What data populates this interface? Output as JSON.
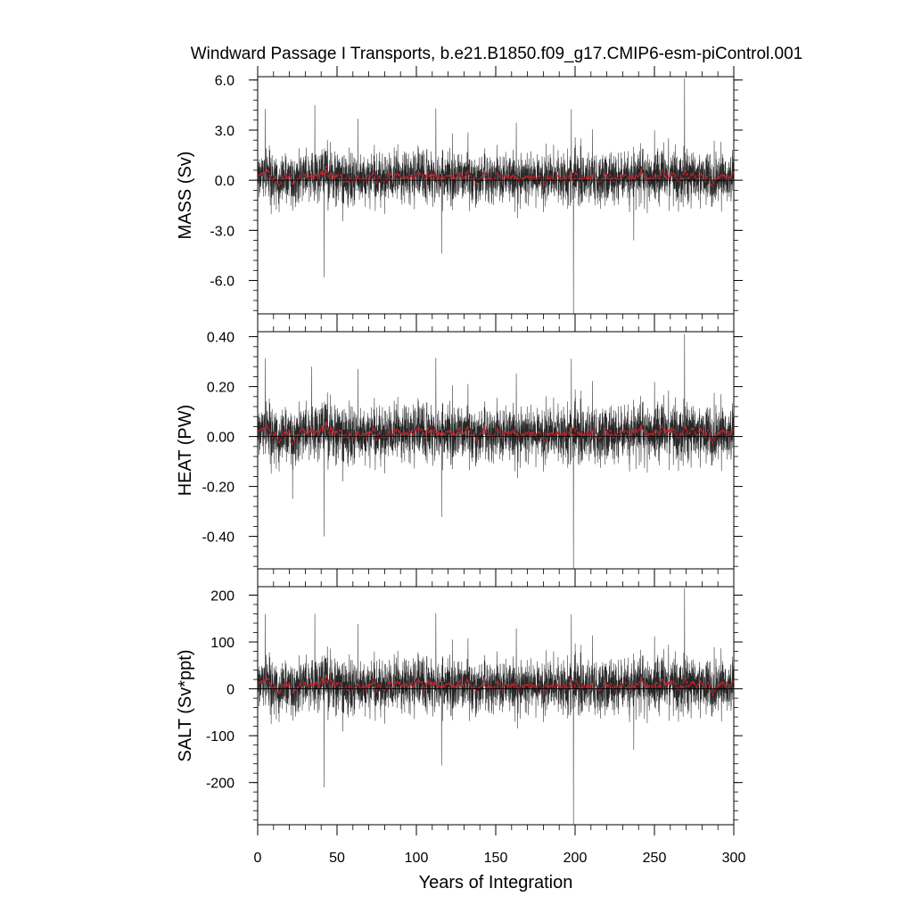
{
  "figure": {
    "title": "Windward Passage I Transports, b.e21.B1850.f09_g17.CMIP6-esm-piControl.001",
    "xlabel": "Years of Integration",
    "x_ticks": [
      0,
      50,
      100,
      150,
      200,
      250,
      300
    ],
    "x_tick_labels": [
      "0",
      "50",
      "100",
      "150",
      "200",
      "250",
      "300"
    ]
  },
  "colors": {
    "raw_series": "#000000",
    "smoothed_series": "#c8202a",
    "frame": "#000000"
  },
  "chart_data": [
    {
      "type": "line",
      "ylabel": "MASS (Sv)",
      "xlim": [
        0,
        300
      ],
      "ylim": [
        -8.0,
        6.2
      ],
      "y_ticks": [
        6.0,
        3.0,
        0.0,
        -3.0,
        -6.0
      ],
      "y_tick_labels": [
        "6.0",
        "3.0",
        "0.0",
        "-3.0",
        "-6.0"
      ],
      "mean": 0.2,
      "noise_scale": 0.75,
      "spikes": [
        [
          36,
          4.5
        ],
        [
          41.8,
          -5.8
        ],
        [
          199,
          -8.0
        ],
        [
          269,
          6.1
        ],
        [
          237,
          -3.6
        ]
      ]
    },
    {
      "type": "line",
      "ylabel": "HEAT (PW)",
      "xlim": [
        0,
        300
      ],
      "ylim": [
        -0.53,
        0.42
      ],
      "y_ticks": [
        0.4,
        0.2,
        0.0,
        -0.2,
        -0.4
      ],
      "y_tick_labels": [
        "0.40",
        "0.20",
        "0.00",
        "-0.20",
        "-0.40"
      ],
      "mean": 0.015,
      "noise_scale": 0.055,
      "spikes": [
        [
          34,
          0.28
        ],
        [
          41.8,
          -0.4
        ],
        [
          199,
          -0.53
        ],
        [
          269,
          0.41
        ],
        [
          22,
          -0.25
        ]
      ]
    },
    {
      "type": "line",
      "ylabel": "SALT (Sv*ppt)",
      "xlim": [
        0,
        300
      ],
      "ylim": [
        -290,
        218
      ],
      "y_ticks": [
        200,
        100,
        0,
        -100,
        -200
      ],
      "y_tick_labels": [
        "200",
        "100",
        "0",
        "-100",
        "-200"
      ],
      "mean": 8,
      "noise_scale": 28,
      "spikes": [
        [
          36,
          160
        ],
        [
          41.8,
          -210
        ],
        [
          199,
          -290
        ],
        [
          269,
          215
        ],
        [
          237,
          -130
        ]
      ]
    }
  ]
}
